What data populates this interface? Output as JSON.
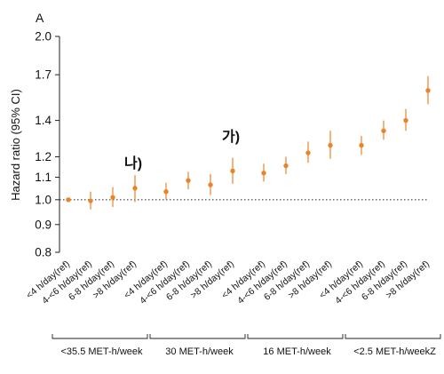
{
  "chart_data": {
    "type": "scatter",
    "panel_label": "A",
    "ylabel": "Hazard ratio (95% CI)",
    "y_scale": "log",
    "ylim": [
      0.8,
      2.0
    ],
    "y_ticks": [
      "0.8",
      "0.9",
      "1.0",
      "1.1",
      "1.2",
      "1.4",
      "1.7",
      "2.0"
    ],
    "reference_line": 1.0,
    "marker_color": "#e8842a",
    "groups": [
      {
        "label": "<35.5 MET-h/week",
        "categories": [
          "<4 h/day(ref)",
          "4-<6 h/day(ref)",
          "6-8 h/day(ref)",
          ">8 h/day(ref)"
        ],
        "hr": [
          1.0,
          0.995,
          1.01,
          1.05
        ],
        "ci_low": [
          1.0,
          0.96,
          0.97,
          0.99
        ],
        "ci_high": [
          1.0,
          1.035,
          1.055,
          1.11
        ]
      },
      {
        "label": "30 MET-h/week",
        "categories": [
          "<4 h/day(ref)",
          "4-<6 h/day(ref)",
          "6-8 h/day(ref)",
          ">8 h/day(ref)"
        ],
        "hr": [
          1.035,
          1.085,
          1.065,
          1.13
        ],
        "ci_low": [
          1.0,
          1.045,
          1.02,
          1.07
        ],
        "ci_high": [
          1.075,
          1.125,
          1.115,
          1.195
        ]
      },
      {
        "label": "16 MET-h/week",
        "categories": [
          "<4 h/day(ref)",
          "4-<6 h/day(ref)",
          "6-8 h/day(ref)",
          ">8 h/day(ref)"
        ],
        "hr": [
          1.12,
          1.155,
          1.22,
          1.26
        ],
        "ci_low": [
          1.08,
          1.115,
          1.17,
          1.19
        ],
        "ci_high": [
          1.165,
          1.2,
          1.28,
          1.34
        ]
      },
      {
        "label": "<2.5 MET-h/weekZ",
        "categories": [
          "<4 h/day(ref)",
          "4-<6 h/day(ref)",
          "6-8 h/day(ref)",
          ">8 h/day(ref)"
        ],
        "hr": [
          1.26,
          1.34,
          1.4,
          1.59
        ],
        "ci_low": [
          1.21,
          1.29,
          1.34,
          1.5
        ],
        "ci_high": [
          1.31,
          1.4,
          1.47,
          1.69
        ]
      }
    ],
    "annotations": [
      {
        "text": "나)",
        "group": 0,
        "index": 3,
        "y": 1.17
      },
      {
        "text": "가)",
        "group": 1,
        "index": 3,
        "y": 1.31
      }
    ]
  }
}
